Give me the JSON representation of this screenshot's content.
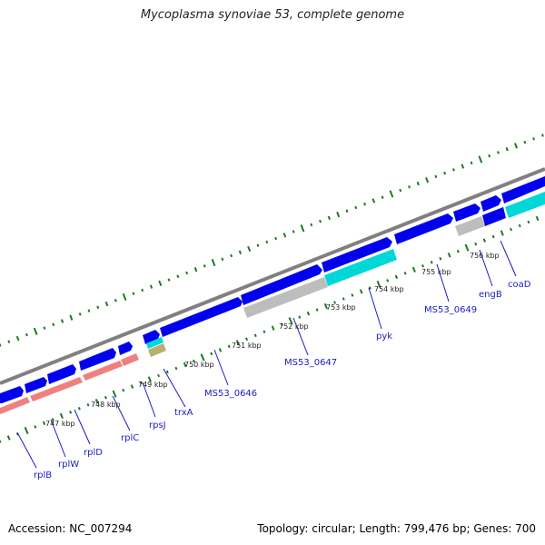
{
  "title": "Mycoplasma synoviae 53, complete genome",
  "footer": {
    "accession": "Accession: NC_007294",
    "topology": "Topology: circular; Length: 799,476 bp; Genes: 700"
  },
  "colors": {
    "cds_forward": "#0000ee",
    "rrna_rna": "#f08080",
    "hypothetical": "#bdbdbd",
    "highlight": "#00d8d8",
    "trna": "#b8b070",
    "backbone": "#808080",
    "tick": "#1f7a1f",
    "label": "#1a1acc"
  },
  "kbp_labels": [
    "747 kbp",
    "748 kbp",
    "749 kbp",
    "750 kbp",
    "751 kbp",
    "752 kbp",
    "753 kbp",
    "754 kbp",
    "755 kbp",
    "756 kbp"
  ],
  "gene_labels": [
    "rplB",
    "rplW",
    "rplD",
    "rplC",
    "rpsJ",
    "trxA",
    "MS53_0646",
    "MS53_0647",
    "pyk",
    "MS53_0649",
    "engB",
    "coaD"
  ]
}
